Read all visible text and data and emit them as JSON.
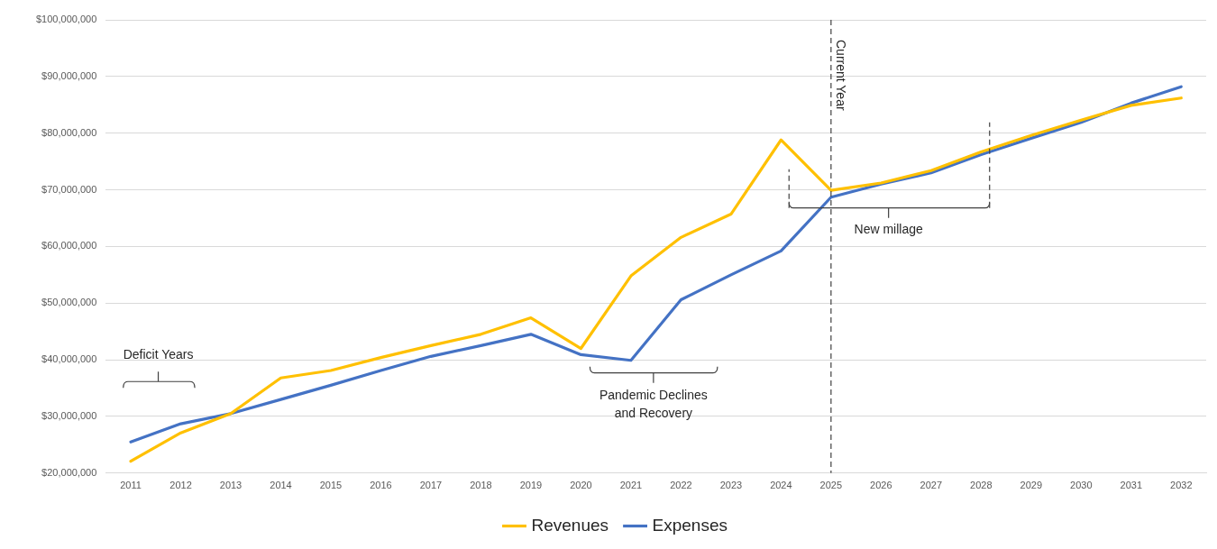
{
  "chart_data": {
    "type": "line",
    "categories": [
      "2011",
      "2012",
      "2013",
      "2014",
      "2015",
      "2016",
      "2017",
      "2018",
      "2019",
      "2020",
      "2021",
      "2022",
      "2023",
      "2024",
      "2025",
      "2026",
      "2027",
      "2028",
      "2029",
      "2030",
      "2031",
      "2032"
    ],
    "series": [
      {
        "name": "Revenues",
        "color": "#ffc000",
        "values": [
          22100000,
          27100000,
          30500000,
          36800000,
          38100000,
          40400000,
          42500000,
          44500000,
          47400000,
          42000000,
          54800000,
          61600000,
          65700000,
          78800000,
          69900000,
          71200000,
          73400000,
          76700000,
          79600000,
          82300000,
          84900000,
          86200000
        ]
      },
      {
        "name": "Expenses",
        "color": "#4472c4",
        "values": [
          25500000,
          28700000,
          30500000,
          33000000,
          35500000,
          38100000,
          40600000,
          42500000,
          44500000,
          40900000,
          39900000,
          50600000,
          55000000,
          59200000,
          68700000,
          71000000,
          73000000,
          76200000,
          79100000,
          81900000,
          85300000,
          88200000
        ]
      }
    ],
    "ylim": [
      20000000,
      100000000
    ],
    "yticks": [
      {
        "value": 20000000,
        "label": "$20,000,000"
      },
      {
        "value": 30000000,
        "label": "$30,000,000"
      },
      {
        "value": 40000000,
        "label": "$40,000,000"
      },
      {
        "value": 50000000,
        "label": "$50,000,000"
      },
      {
        "value": 60000000,
        "label": "$60,000,000"
      },
      {
        "value": 70000000,
        "label": "$70,000,000"
      },
      {
        "value": 80000000,
        "label": "$80,000,000"
      },
      {
        "value": 90000000,
        "label": "$90,000,000"
      },
      {
        "value": 100000000,
        "label": "$100,000,000"
      }
    ],
    "ref_lines": [
      {
        "axis": "x",
        "value": "2025",
        "label": "Current Year",
        "color": "#404040",
        "line_style": "dashed"
      }
    ],
    "annotations": [
      "Deficit Years",
      "Pandemic Declines and Recovery",
      "New millage"
    ],
    "grid": "y",
    "legend": "bottom",
    "marker": "none",
    "line_style": "solid"
  }
}
